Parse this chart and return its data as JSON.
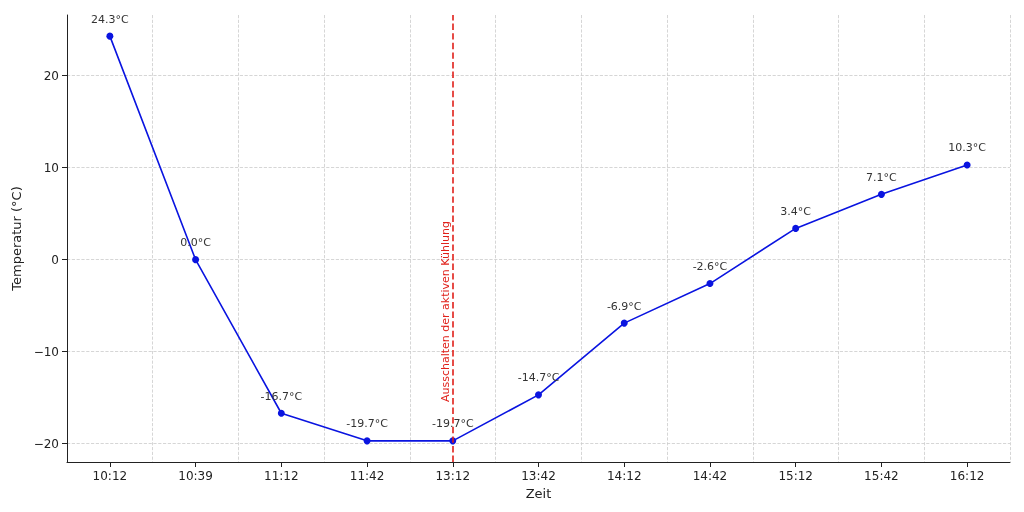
{
  "chart_data": {
    "type": "line",
    "xlabel": "Zeit",
    "ylabel": "Temperatur (°C)",
    "categories": [
      "10:12",
      "10:39",
      "11:12",
      "11:42",
      "13:12",
      "13:42",
      "14:12",
      "14:42",
      "15:12",
      "15:42",
      "16:12"
    ],
    "series": [
      {
        "color": "#0a14e0",
        "values": [
          24.3,
          0.0,
          -16.7,
          -19.7,
          -19.7,
          -14.7,
          -6.9,
          -2.6,
          3.4,
          7.1,
          10.3
        ],
        "value_labels": [
          "24.3°C",
          "0.0°C",
          "-16.7°C",
          "-19.7°C",
          "-19.7°C",
          "-14.7°C",
          "-6.9°C",
          "-2.6°C",
          "3.4°C",
          "7.1°C",
          "10.3°C"
        ]
      }
    ],
    "ylim": [
      -22,
      26.6
    ],
    "yticks": [
      {
        "value": -20,
        "label": "−20"
      },
      {
        "value": -10,
        "label": "−10"
      },
      0,
      10,
      20
    ],
    "ref_lines": [
      {
        "axis": "x",
        "value": "13:12",
        "label": "Ausschalten der aktiven Kühlung",
        "color": "#e0201a",
        "line_style": "dashed"
      }
    ],
    "grid": true,
    "marker": "circle",
    "line_style": "solid"
  }
}
